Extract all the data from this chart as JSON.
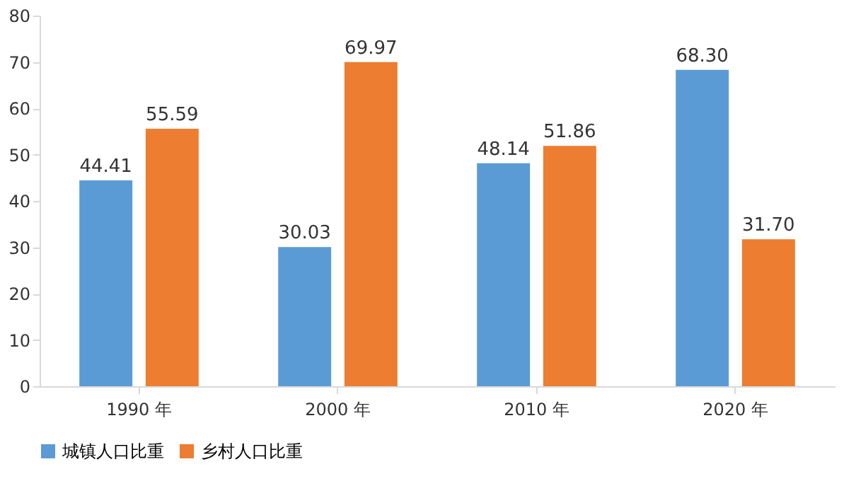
{
  "chart_data": {
    "type": "bar",
    "categories": [
      "1990 年",
      "2000 年",
      "2010 年",
      "2020 年"
    ],
    "series": [
      {
        "name": "城镇人口比重",
        "color": "#5b9bd5",
        "values": [
          44.41,
          30.03,
          48.14,
          68.3
        ]
      },
      {
        "name": "乡村人口比重",
        "color": "#ed7d31",
        "values": [
          55.59,
          69.97,
          51.86,
          31.7
        ]
      }
    ],
    "value_labels": [
      [
        "44.41",
        "30.03",
        "48.14",
        "68.30"
      ],
      [
        "55.59",
        "69.97",
        "51.86",
        "31.70"
      ]
    ],
    "ylim": [
      0,
      80
    ],
    "yticks": [
      0,
      10,
      20,
      30,
      40,
      50,
      60,
      70,
      80
    ],
    "grid": false,
    "legend": "bottom"
  }
}
